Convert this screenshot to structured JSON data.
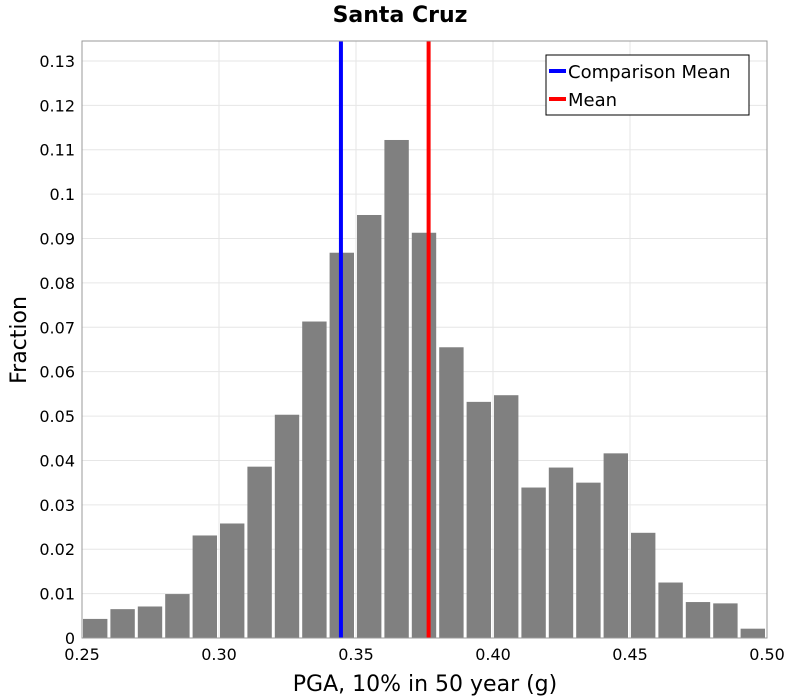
{
  "chart_data": {
    "type": "bar",
    "title": "Santa Cruz",
    "xlabel": "PGA, 10% in 50 year (g)",
    "ylabel": "Fraction",
    "xlim": [
      0.25,
      0.5
    ],
    "ylim": [
      0,
      0.1345
    ],
    "bin_width": 0.01,
    "bin_starts": [
      0.25,
      0.26,
      0.27,
      0.28,
      0.29,
      0.3,
      0.31,
      0.32,
      0.33,
      0.34,
      0.35,
      0.36,
      0.37,
      0.38,
      0.39,
      0.4,
      0.41,
      0.42,
      0.43,
      0.44,
      0.45,
      0.46,
      0.47,
      0.48,
      0.49
    ],
    "values": [
      0.0043,
      0.0065,
      0.0071,
      0.0099,
      0.0231,
      0.0258,
      0.0386,
      0.0503,
      0.0713,
      0.0868,
      0.0953,
      0.1122,
      0.0913,
      0.0655,
      0.0532,
      0.0547,
      0.0339,
      0.0384,
      0.035,
      0.0416,
      0.0237,
      0.0125,
      0.0081,
      0.0078,
      0.0021
    ],
    "bar_color": "#808080",
    "x_ticks": [
      0.25,
      0.3,
      0.35,
      0.4,
      0.45,
      0.5
    ],
    "x_tick_labels": [
      "0.25",
      "0.30",
      "0.35",
      "0.40",
      "0.45",
      "0.50"
    ],
    "y_ticks": [
      0,
      0.01,
      0.02,
      0.03,
      0.04,
      0.05,
      0.06,
      0.07,
      0.08,
      0.09,
      0.1,
      0.11,
      0.12,
      0.13
    ],
    "y_tick_labels": [
      "0",
      "0.01",
      "0.02",
      "0.03",
      "0.04",
      "0.05",
      "0.06",
      "0.07",
      "0.08",
      "0.09",
      "0.1",
      "0.11",
      "0.12",
      "0.13"
    ],
    "grid": true,
    "vlines": [
      {
        "name": "Comparison Mean",
        "x": 0.3445,
        "color": "#0000ff"
      },
      {
        "name": "Mean",
        "x": 0.3765,
        "color": "#ff0000"
      }
    ],
    "legend": {
      "position": "top-right",
      "entries": [
        {
          "label": "Comparison Mean",
          "color": "#0000ff"
        },
        {
          "label": "Mean",
          "color": "#ff0000"
        }
      ]
    }
  }
}
